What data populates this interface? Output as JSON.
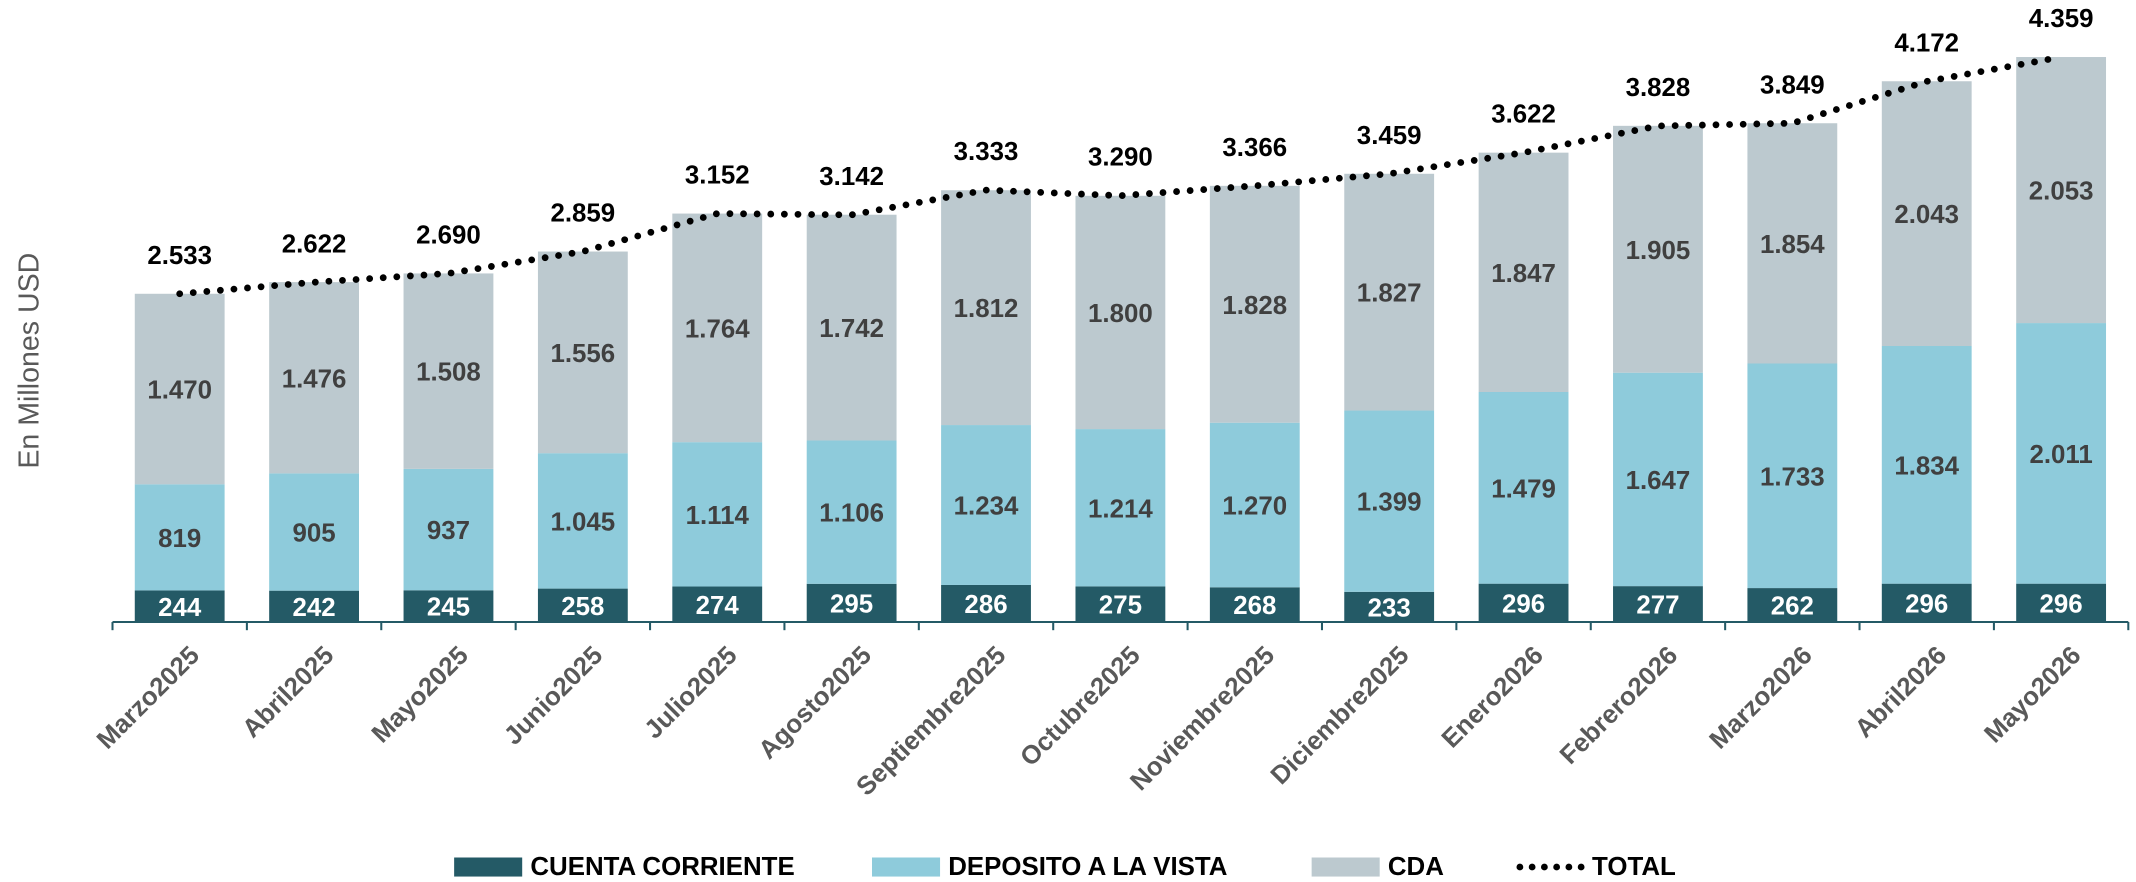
{
  "chart_data": {
    "type": "bar",
    "stacked": true,
    "y_label": "En Millones USD",
    "categories": [
      "Marzo2025",
      "Abril2025",
      "Mayo2025",
      "Junio2025",
      "Julio2025",
      "Agosto2025",
      "Septiembre2025",
      "Octubre2025",
      "Noviembre2025",
      "Diciembre2025",
      "Enero2026",
      "Febrero2026",
      "Marzo2026",
      "Abril2026",
      "Mayo2026"
    ],
    "ylim": [
      0,
      4800
    ],
    "series": [
      {
        "name": "CUENTA CORRIENTE",
        "color": "#245a66",
        "values": [
          244,
          242,
          245,
          258,
          274,
          295,
          286,
          275,
          268,
          233,
          296,
          277,
          262,
          296,
          296
        ]
      },
      {
        "name": "DEPOSITO A LA VISTA",
        "color": "#8ecbdb",
        "values": [
          819,
          905,
          937,
          1045,
          1114,
          1106,
          1234,
          1214,
          1270,
          1399,
          1479,
          1647,
          1733,
          1834,
          2011
        ],
        "value_labels": [
          "819",
          "905",
          "937",
          "1.045",
          "1.114",
          "1.106",
          "1.234",
          "1.214",
          "1.270",
          "1.399",
          "1.479",
          "1.647",
          "1.733",
          "1.834",
          "2.011"
        ]
      },
      {
        "name": "CDA",
        "color": "#bcc9cf",
        "values": [
          1470,
          1476,
          1508,
          1556,
          1764,
          1742,
          1812,
          1800,
          1828,
          1827,
          1847,
          1905,
          1854,
          2043,
          2053
        ],
        "value_labels": [
          "1.470",
          "1.476",
          "1.508",
          "1.556",
          "1.764",
          "1.742",
          "1.812",
          "1.800",
          "1.828",
          "1.827",
          "1.847",
          "1.905",
          "1.854",
          "2.043",
          "2.053"
        ]
      },
      {
        "name": "TOTAL",
        "color": "#000000",
        "kind": "line",
        "values": [
          2533,
          2622,
          2690,
          2859,
          3152,
          3142,
          3333,
          3290,
          3366,
          3459,
          3622,
          3828,
          3849,
          4172,
          4359
        ],
        "value_labels": [
          "2.533",
          "2.622",
          "2.690",
          "2.859",
          "3.152",
          "3.142",
          "3.333",
          "3.290",
          "3.366",
          "3.459",
          "3.622",
          "3.828",
          "3.849",
          "4.172",
          "4.359"
        ]
      }
    ]
  }
}
